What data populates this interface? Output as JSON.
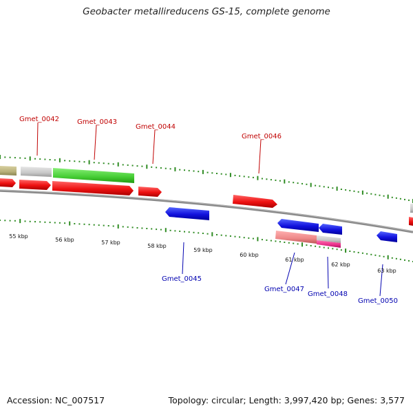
{
  "header": {
    "title": "Geobacter metallireducens GS-15, complete genome"
  },
  "footer": {
    "accession": "Accession: NC_007517",
    "summary": "Topology: circular; Length: 3,997,420 bp; Genes: 3,577"
  },
  "colors": {
    "cds_forward": "#ee1111",
    "cds_reverse": "#1111dd",
    "backbone": "#8a8a8a",
    "tick": "#2e8b22",
    "label_forward": "#c00000",
    "label_reverse": "#0000b0",
    "feature_green": "#44cc33",
    "feature_gray": "#c8c8c8",
    "feature_olive": "#b8b07a",
    "feature_pink": "#ee8888",
    "feature_magenta": "#e8308a"
  },
  "kbp_labels": [
    "55 kbp",
    "56 kbp",
    "57 kbp",
    "58 kbp",
    "59 kbp",
    "60 kbp",
    "61 kbp",
    "62 kbp",
    "63 kbp"
  ],
  "gene_labels": {
    "forward": [
      "Gmet_0042",
      "Gmet_0043",
      "Gmet_0044",
      "Gmet_0046"
    ],
    "reverse": [
      "Gmet_0045",
      "Gmet_0047",
      "Gmet_0048",
      "Gmet_0050"
    ]
  }
}
